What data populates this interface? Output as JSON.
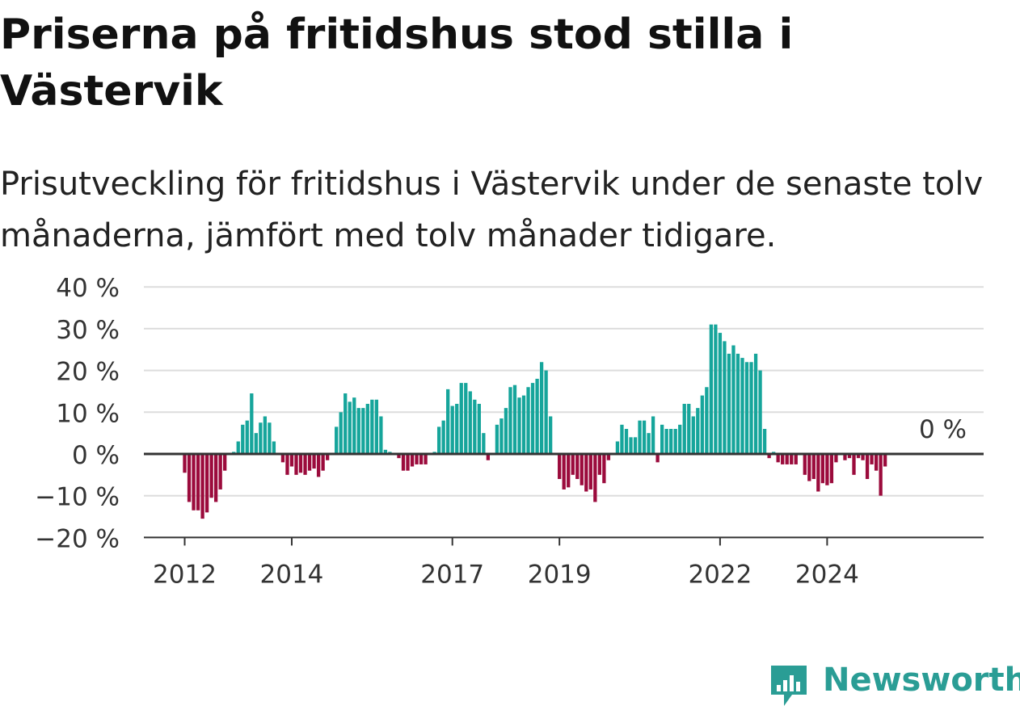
{
  "title": "Priserna på fritidshus stod stilla i Västervik",
  "subtitle": "Prisutveckling för fritidshus i Västervik under de senaste tolv månaderna, jämfört med tolv månader tidigare.",
  "logo_text": "Newsworthy",
  "colors": {
    "positive": "#16a59b",
    "negative": "#9b0b3c",
    "grid": "#dddddd",
    "axis": "#333333",
    "brand": "#2a9d95"
  },
  "chart_data": {
    "type": "bar",
    "ylim": [
      -20,
      40
    ],
    "yticks": [
      -20,
      -10,
      0,
      10,
      20,
      30,
      40
    ],
    "ytick_labels": [
      "−20 %",
      "−10 %",
      "0 %",
      "10 %",
      "20 %",
      "30 %",
      "40 %"
    ],
    "grid": true,
    "x_start": "2012-01",
    "x_ticks": [
      {
        "label": "2012",
        "date": "2012-01"
      },
      {
        "label": "2014",
        "date": "2014-01"
      },
      {
        "label": "2017",
        "date": "2017-01"
      },
      {
        "label": "2019",
        "date": "2019-01"
      },
      {
        "label": "2022",
        "date": "2022-01"
      },
      {
        "label": "2024",
        "date": "2024-01"
      }
    ],
    "annotation": {
      "text": "0 %",
      "value": 0
    },
    "values": [
      -4.5,
      -11.5,
      -13.5,
      -13.5,
      -15.5,
      -14,
      -10.5,
      -11.5,
      -8.5,
      -4,
      0,
      0.5,
      3,
      7,
      8,
      14.5,
      5,
      7.5,
      9,
      7.5,
      3,
      0,
      -2,
      -5,
      -3,
      -5,
      -4.5,
      -5,
      -4,
      -3.5,
      -5.5,
      -4,
      -1.5,
      0,
      6.5,
      10,
      14.5,
      12.5,
      13.5,
      11,
      11,
      12,
      13,
      13,
      9,
      1,
      0.5,
      0,
      -1,
      -4,
      -4,
      -3,
      -2.5,
      -2.5,
      -2.5,
      0,
      0.5,
      6.5,
      8,
      15.5,
      11.5,
      12,
      17,
      17,
      15,
      13,
      12,
      5,
      -1.5,
      0,
      7,
      8.5,
      11,
      16,
      16.5,
      13.5,
      14,
      16,
      17,
      18,
      22,
      20,
      9,
      0,
      -6,
      -8.5,
      -8,
      -5,
      -6,
      -7.5,
      -9,
      -8.5,
      -11.5,
      -5,
      -7,
      -1.5,
      0,
      3,
      7,
      6,
      4,
      4,
      8,
      8,
      5,
      9,
      -2,
      7,
      6,
      6,
      6,
      7,
      12,
      12,
      9,
      11,
      14,
      16,
      31,
      31,
      29,
      27,
      24,
      26,
      24,
      23,
      22,
      22,
      24,
      20,
      6,
      -1,
      0.5,
      -2,
      -2.5,
      -2.5,
      -2.5,
      -2.5,
      0,
      -5,
      -6.5,
      -6,
      -9,
      -7,
      -7.5,
      -7,
      -2,
      0,
      -1.5,
      -1,
      -5,
      -1,
      -1.5,
      -6,
      -2.5,
      -4,
      -10,
      -3
    ]
  }
}
